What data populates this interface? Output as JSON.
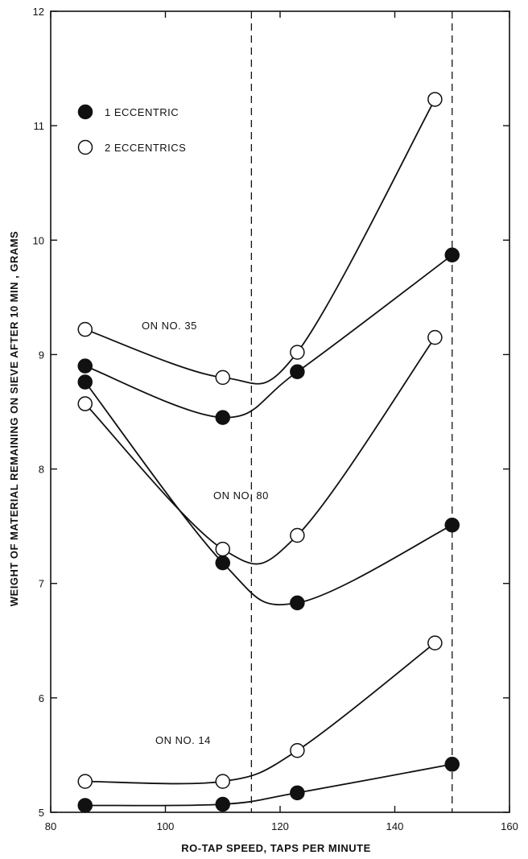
{
  "chart_data": {
    "type": "scatter",
    "xlabel": "RO-TAP SPEED, TAPS PER MINUTE",
    "ylabel": "WEIGHT OF MATERIAL REMAINING ON SIEVE AFTER 10 MIN , GRAMS",
    "xlim": [
      80,
      160
    ],
    "ylim": [
      5,
      12
    ],
    "xticks": [
      "80",
      "100",
      "120",
      "140",
      "160"
    ],
    "yticks": [
      "5",
      "6",
      "7",
      "8",
      "9",
      "10",
      "11",
      "12"
    ],
    "reference_lines_x": [
      115,
      150
    ],
    "legend": [
      {
        "label": "1 ECCENTRIC",
        "marker": "filled"
      },
      {
        "label": "2 ECCENTRICS",
        "marker": "open"
      }
    ],
    "annotations": [
      "ON NO. 35",
      "ON NO. 80",
      "ON NO. 14"
    ],
    "series": [
      {
        "sieve": "No. 35",
        "marker": "open",
        "x": [
          86,
          110,
          123,
          147
        ],
        "y": [
          9.22,
          8.8,
          9.02,
          11.23
        ]
      },
      {
        "sieve": "No. 35",
        "marker": "filled",
        "x": [
          86,
          110,
          123,
          150
        ],
        "y": [
          8.9,
          8.45,
          8.85,
          9.87
        ]
      },
      {
        "sieve": "No. 80",
        "marker": "open",
        "x": [
          86,
          110,
          123,
          147
        ],
        "y": [
          8.57,
          7.3,
          7.42,
          9.15
        ]
      },
      {
        "sieve": "No. 80",
        "marker": "filled",
        "x": [
          86,
          110,
          123,
          150
        ],
        "y": [
          8.76,
          7.18,
          6.83,
          7.51
        ]
      },
      {
        "sieve": "No. 14",
        "marker": "open",
        "x": [
          86,
          110,
          123,
          147
        ],
        "y": [
          5.27,
          5.27,
          5.54,
          6.48
        ]
      },
      {
        "sieve": "No. 14",
        "marker": "filled",
        "x": [
          86,
          110,
          123,
          150
        ],
        "y": [
          5.06,
          5.07,
          5.17,
          5.42
        ]
      }
    ]
  }
}
